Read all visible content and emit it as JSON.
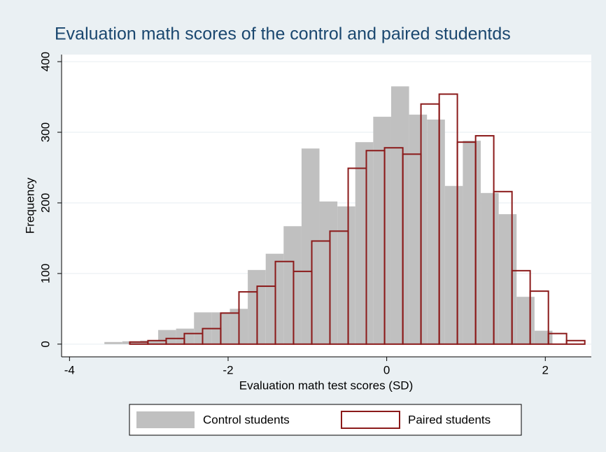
{
  "chart_data": {
    "type": "histogram",
    "title": "Evaluation math scores of the control and paired studentds",
    "xlabel": "Evaluation math test scores (SD)",
    "ylabel": "Frequency",
    "xlim": [
      -4.1,
      2.58
    ],
    "xticks": [
      -4,
      -2,
      0,
      2
    ],
    "ylim": [
      -18,
      410
    ],
    "yticks": [
      0,
      100,
      200,
      300,
      400
    ],
    "grid": true,
    "legend": "bottom",
    "series": [
      {
        "name": "Control students",
        "color": "#c0c0c0",
        "style": "filled",
        "bins": [
          -3.56,
          -3.334,
          -3.108,
          -2.882,
          -2.656,
          -2.43,
          -2.204,
          -1.978,
          -1.752,
          -1.526,
          -1.3,
          -1.074,
          -0.848,
          -0.622,
          -0.396,
          -0.17,
          0.056,
          0.282,
          0.508,
          0.734,
          0.96,
          1.186,
          1.412,
          1.638,
          1.864,
          2.09
        ],
        "values": [
          3,
          4,
          5,
          20,
          22,
          45,
          45,
          50,
          105,
          128,
          167,
          277,
          202,
          195,
          286,
          322,
          365,
          325,
          318,
          224,
          288,
          214,
          184,
          67,
          19
        ]
      },
      {
        "name": "Paired students",
        "color": "#8b1a1a",
        "style": "outline",
        "bins": [
          -3.24,
          -3.011,
          -2.781,
          -2.552,
          -2.322,
          -2.093,
          -1.863,
          -1.634,
          -1.404,
          -1.175,
          -0.945,
          -0.716,
          -0.486,
          -0.257,
          -0.027,
          0.203,
          0.432,
          0.662,
          0.891,
          1.121,
          1.35,
          1.58,
          1.809,
          2.039,
          2.268,
          2.498
        ],
        "values": [
          3,
          5,
          8,
          15,
          22,
          44,
          74,
          82,
          117,
          103,
          146,
          160,
          249,
          274,
          278,
          269,
          340,
          354,
          286,
          295,
          216,
          104,
          75,
          15,
          5
        ]
      }
    ]
  }
}
